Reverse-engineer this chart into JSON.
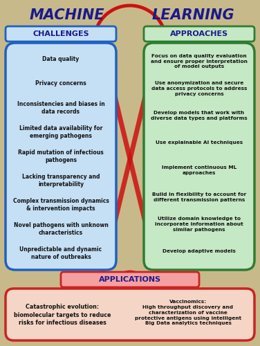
{
  "title_left": "MACHINE",
  "title_right": "LEARNING",
  "title_color": "#1a1a8c",
  "title_fontsize": 15,
  "bg_color": "#c8b98a",
  "challenges_header": "CHALLENGES",
  "approaches_header": "APPROACHES",
  "applications_header": "APPLICATIONS",
  "challenges_items": [
    "Data quality",
    "Privacy concerns",
    "Inconsistencies and biases in\ndata records",
    "Limited data availability for\nemerging pathogens",
    "Rapid mutation of infectious\npathogens",
    "Lacking transparency and\ninterpretability",
    "Complex transmission dynamics\n& intervention impacts",
    "Novel pathogens with unknown\ncharacteristics",
    "Unpredictable and dynamic\nnature of outbreaks"
  ],
  "approaches_items": [
    "Focus on data quality evaluation\nand ensure proper interpretation\nof model outputs",
    "Use anonymization and secure\ndata access protocols to address\nprivacy concerns",
    "Develop models that work with\ndiverse data types and platforms",
    "Use explainable AI techniques",
    "Implement continuous ML\napproaches",
    "Build in flexibility to account for\ndifferent transmission patterns",
    "Utilize domain knowledge to\nincorporate information about\nsimilar pathogens",
    "Develop adaptive models"
  ],
  "app_left": "Catastrophic evolution:\nbiomolecular targets to reduce\nrisks for infectious diseases",
  "app_right": "Vaccinomics:\nHigh throughput discovery and\ncharacterization of vaccine\nprotective antigens using intelligent\nBig Data analytics techniques",
  "challenges_box_color": "#c5dff5",
  "challenges_border_color": "#2060c0",
  "approaches_box_color": "#c5e8c5",
  "approaches_border_color": "#2e7d32",
  "applications_box_color": "#f5d5c5",
  "applications_border_color": "#cc2222",
  "header_box_challenges_color": "#c5dff5",
  "header_box_approaches_color": "#c5e8c5",
  "header_box_applications_color": "#f5a0a0",
  "header_border_challenges": "#2060c0",
  "header_border_approaches": "#2e7d32",
  "header_border_applications": "#cc2222",
  "red_cross_color": "#cc1111",
  "arch_color": "#cc1111"
}
